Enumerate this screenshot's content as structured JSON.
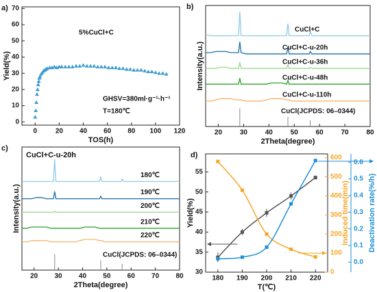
{
  "chart_data": [
    {
      "type": "scatter",
      "panel": "a)",
      "xlabel": "TOS(h)",
      "ylabel": "Yield(%)",
      "annotations": [
        "5%CuCl+C",
        "GHSV=380ml·g⁻¹·h⁻¹",
        "T=180℃"
      ],
      "color": "#3d9bd1",
      "x": [
        0,
        0.5,
        1,
        1.5,
        2,
        2.5,
        3,
        3.5,
        4,
        5,
        6,
        7,
        8,
        9,
        10,
        12,
        14,
        16,
        18,
        20,
        22,
        25,
        28,
        31,
        34,
        37,
        40,
        43,
        46,
        49,
        52,
        55,
        58,
        61,
        64,
        67,
        70,
        73,
        76,
        79,
        82,
        85,
        88,
        91,
        94,
        97,
        100,
        103,
        106,
        109
      ],
      "values": [
        3,
        7,
        12,
        17,
        20,
        23,
        25,
        27,
        28,
        29.5,
        30.5,
        31.5,
        32,
        32.5,
        33,
        33.5,
        33.5,
        34,
        33.5,
        34,
        34,
        34,
        34,
        34,
        34.5,
        34.5,
        35,
        34.5,
        34.5,
        34.5,
        34,
        34,
        34,
        33.5,
        33.5,
        33.5,
        33,
        33,
        32.5,
        32.5,
        32,
        32,
        32,
        31.5,
        31,
        31,
        30.5,
        30,
        30,
        29.5
      ],
      "xlim": [
        -11,
        120
      ],
      "xticks": [
        0,
        20,
        40,
        60,
        80,
        100,
        120
      ],
      "ylim": [
        -2,
        71
      ],
      "yticks": [
        0,
        10,
        20,
        30,
        40,
        50,
        60,
        70
      ]
    },
    {
      "type": "spectra",
      "panel": "b)",
      "xlabel": "2Theta(degree)",
      "ylabel": "Intensity(a.u.)",
      "x": [
        15,
        17,
        19,
        21,
        23,
        25,
        27,
        28,
        28.5,
        29,
        31,
        33,
        35,
        37,
        39,
        41,
        43,
        45,
        47,
        47.5,
        48,
        49,
        51,
        53,
        55,
        56,
        56.3,
        57,
        59,
        61,
        63,
        65,
        67,
        69,
        71,
        73,
        75,
        77,
        79,
        80
      ],
      "series": [
        {
          "name": "CuCl+C",
          "color": "#8fcbe6",
          "values": [
            76,
            75,
            75,
            75,
            75,
            75,
            75,
            75,
            95,
            75,
            75,
            75,
            75,
            75,
            75,
            75,
            75,
            75,
            75,
            85,
            75,
            75,
            75,
            75,
            75,
            75,
            79,
            75,
            75,
            75,
            75,
            75,
            75,
            75,
            75,
            75,
            75,
            75,
            75,
            75
          ]
        },
        {
          "name": "CuCl+C-u-20h",
          "color": "#1a6fa8",
          "values": [
            61,
            61,
            62,
            62,
            62,
            61,
            61,
            61,
            70,
            61,
            60,
            60,
            60,
            60,
            60,
            60,
            60,
            60,
            60,
            66,
            60,
            60,
            60,
            60,
            60,
            60,
            62,
            60,
            60,
            60,
            60,
            60,
            60,
            60,
            60,
            60,
            60,
            60,
            60,
            60
          ]
        },
        {
          "name": "CuCl+C-u-36h",
          "color": "#98d98a",
          "values": [
            48,
            48,
            48,
            49,
            49,
            48,
            48,
            48,
            53,
            48,
            48,
            48,
            48,
            48,
            48,
            48,
            48,
            48,
            48,
            51,
            48,
            48,
            48,
            48,
            48,
            48,
            49,
            48,
            48,
            48,
            48,
            48,
            48,
            48,
            48,
            48,
            48,
            48,
            48,
            48
          ]
        },
        {
          "name": "CuCl+C-u-48h",
          "color": "#2ca02c",
          "values": [
            35,
            35,
            35,
            35,
            35,
            35,
            35,
            35,
            40,
            35,
            35,
            35,
            35,
            35,
            35,
            36,
            36,
            36,
            35,
            38,
            35,
            35,
            35,
            35,
            35,
            35,
            35,
            35,
            35,
            35,
            35,
            35,
            35,
            35,
            35,
            35,
            35,
            35,
            35,
            35
          ]
        },
        {
          "name": "CuCl+C-u-110h",
          "color": "#f5b36b",
          "values": [
            21,
            21,
            22,
            23,
            23,
            23,
            22,
            22,
            22,
            22,
            21,
            21,
            21,
            21,
            22,
            23,
            23,
            23,
            22,
            22,
            22,
            21,
            21,
            21,
            21,
            21,
            21,
            21,
            21,
            21,
            21,
            21,
            21,
            21,
            21,
            21,
            21,
            21,
            21,
            21
          ]
        }
      ],
      "reference": {
        "name": "CuCl(JCPDS: 06–0344)",
        "color": "#888888",
        "x": [
          28.5,
          47.5,
          56.3
        ],
        "values": [
          15,
          8,
          5
        ]
      },
      "xlim": [
        15,
        80
      ],
      "xticks": [
        20,
        30,
        40,
        50,
        60,
        70,
        80
      ],
      "ylim": [
        0,
        100
      ]
    },
    {
      "type": "spectra",
      "panel": "c)",
      "title": "CuCl+C-u-20h",
      "xlabel": "2Theta(degree)",
      "ylabel": "Intensity(a.u.)",
      "x": [
        15,
        17,
        19,
        21,
        23,
        25,
        27,
        28,
        28.5,
        29,
        31,
        33,
        35,
        37,
        39,
        41,
        43,
        45,
        47,
        47.5,
        48,
        49,
        51,
        53,
        55,
        56,
        56.3,
        57,
        59,
        61,
        63,
        65,
        67,
        69,
        71,
        73,
        75,
        77,
        79,
        80
      ],
      "series": [
        {
          "name": "180℃",
          "color": "#8fcbe6",
          "values": [
            72,
            72,
            72,
            72,
            72,
            72,
            72,
            72,
            90,
            72,
            72,
            72,
            72,
            72,
            72,
            72,
            72,
            72,
            72,
            76,
            72,
            72,
            72,
            72,
            72,
            72,
            74,
            72,
            72,
            72,
            72,
            72,
            72,
            72,
            72,
            72,
            72,
            72,
            72,
            72
          ]
        },
        {
          "name": "190℃",
          "color": "#1a6fa8",
          "values": [
            58,
            58,
            58,
            59,
            59,
            58,
            58,
            58,
            64,
            58,
            58,
            58,
            58,
            58,
            58,
            58,
            58,
            58,
            58,
            60,
            58,
            58,
            58,
            58,
            58,
            58,
            58,
            58,
            58,
            58,
            58,
            58,
            58,
            58,
            58,
            58,
            58,
            58,
            58,
            58
          ]
        },
        {
          "name": "200℃",
          "color": "#98d98a",
          "values": [
            47,
            47,
            47,
            47,
            47,
            47,
            47,
            47,
            48,
            47,
            47,
            47,
            47,
            47,
            47,
            47,
            47,
            47,
            47,
            47,
            47,
            47,
            47,
            47,
            47,
            47,
            47,
            47,
            47,
            47,
            47,
            47,
            47,
            47,
            47,
            47,
            47,
            47,
            47,
            47
          ]
        },
        {
          "name": "210℃",
          "color": "#2ca02c",
          "values": [
            34,
            34,
            35,
            35,
            35,
            35,
            34,
            34,
            34,
            34,
            34,
            34,
            34,
            34,
            34,
            35,
            35,
            35,
            34,
            34,
            34,
            34,
            34,
            34,
            34,
            34,
            34,
            34,
            34,
            34,
            34,
            34,
            34,
            34,
            34,
            34,
            34,
            34,
            34,
            34
          ]
        },
        {
          "name": "220℃",
          "color": "#f5b36b",
          "values": [
            23,
            23,
            24,
            24,
            24,
            24,
            23,
            23,
            23,
            23,
            23,
            23,
            23,
            23,
            24,
            25,
            25,
            25,
            24,
            24,
            24,
            23,
            23,
            23,
            23,
            23,
            23,
            23,
            23,
            23,
            23,
            23,
            23,
            23,
            23,
            23,
            23,
            23,
            23,
            23
          ]
        }
      ],
      "reference": {
        "name": "CuCl(JCPDS: 06–0344)",
        "color": "#888888",
        "x": [
          28.5,
          47.5,
          56.3
        ],
        "values": [
          13,
          8,
          5
        ]
      },
      "xlim": [
        15,
        80
      ],
      "xticks": [
        20,
        30,
        40,
        50,
        60,
        70,
        80
      ],
      "ylim": [
        0,
        100
      ]
    },
    {
      "type": "line",
      "panel": "d)",
      "xlabel": "T(℃)",
      "ylabel": "Yield(%)",
      "y2label": "Induced time(min)",
      "y3label": "Deactivation rate(%/h)",
      "x": [
        180,
        190,
        200,
        210,
        220
      ],
      "series": [
        {
          "color": "#555555",
          "values": [
            33.7,
            40,
            44.8,
            49,
            53.6
          ],
          "errors": [
            1.2,
            0.8,
            1,
            0.9,
            0.5
          ]
        },
        {
          "color": "#f5a623",
          "axis": "y2",
          "values": [
            580,
            430,
            200,
            120,
            80
          ]
        },
        {
          "color": "#1f8fd6",
          "axis": "y3",
          "values": [
            0.02,
            0.03,
            0.09,
            0.35,
            0.61
          ]
        }
      ],
      "xlim": [
        175,
        225
      ],
      "xticks": [
        180,
        190,
        200,
        210,
        220
      ],
      "ylim": [
        30,
        59.5
      ],
      "yticks": [
        30,
        35,
        40,
        45,
        50,
        55
      ],
      "y2lim": [
        0,
        620
      ],
      "y2ticks": [
        0,
        100,
        200,
        300,
        400,
        500,
        600
      ],
      "y3lim": [
        -0.06,
        0.65
      ],
      "y3ticks": [
        {
          "value": 0,
          "label": "0.0"
        },
        0.1,
        0.2,
        0.3,
        0.4,
        0.5,
        0.6
      ]
    }
  ]
}
